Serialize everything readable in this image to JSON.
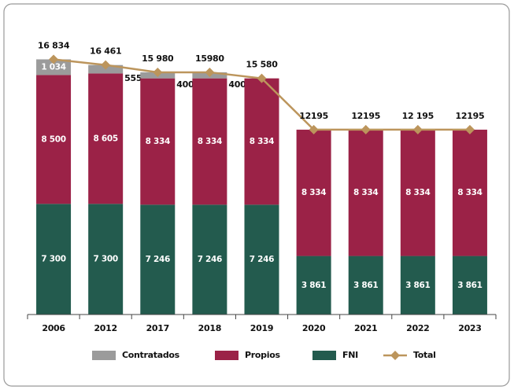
{
  "chart_data": {
    "type": "bar",
    "stacked": true,
    "categories": [
      "2006",
      "2012",
      "2017",
      "2018",
      "2019",
      "2020",
      "2021",
      "2022",
      "2023"
    ],
    "series": [
      {
        "name": "Contratados",
        "color": "#9b9b9b",
        "values": [
          1034,
          555,
          400,
          400,
          null,
          null,
          null,
          null,
          null
        ],
        "value_labels": [
          "1 034",
          "555",
          "400",
          "400",
          null,
          null,
          null,
          null,
          null
        ]
      },
      {
        "name": "Propios",
        "color": "#9b2247",
        "values": [
          8500,
          8605,
          8334,
          8334,
          8334,
          8334,
          8334,
          8334,
          8334
        ],
        "value_labels": [
          "8 500",
          "8 605",
          "8 334",
          "8 334",
          "8 334",
          "8 334",
          "8 334",
          "8 334",
          "8 334"
        ]
      },
      {
        "name": "FNI",
        "color": "#235b4e",
        "values": [
          7300,
          7300,
          7246,
          7246,
          7246,
          3861,
          3861,
          3861,
          3861
        ],
        "value_labels": [
          "7 300",
          "7 300",
          "7 246",
          "7 246",
          "7 246",
          "3 861",
          "3 861",
          "3 861",
          "3 861"
        ]
      },
      {
        "name": "Total",
        "color": "#bc955c",
        "type": "line",
        "values": [
          16834,
          16461,
          15980,
          15980,
          15580,
          12195,
          12195,
          12195,
          12195
        ],
        "value_labels": [
          "16 834",
          "16 461",
          "15 980",
          "15980",
          "15 580",
          "12195",
          "12195",
          "12 195",
          "12195"
        ]
      }
    ],
    "ylim": [
      0,
      18000
    ],
    "legend": "bottom"
  }
}
